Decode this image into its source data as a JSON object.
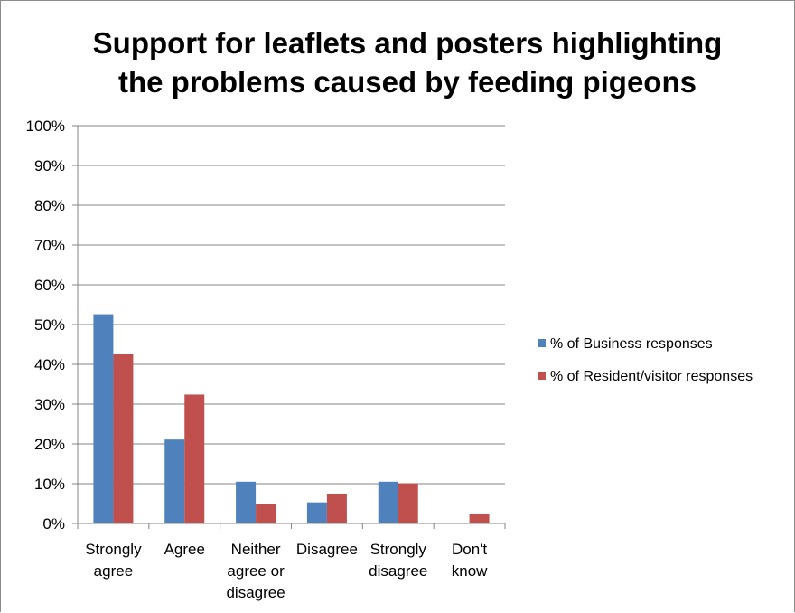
{
  "chart_data": {
    "type": "bar",
    "title_lines": [
      "Support for leaflets and posters highlighting",
      "the problems caused by feeding pigeons"
    ],
    "categories": [
      [
        "Strongly",
        "agree"
      ],
      [
        "Agree"
      ],
      [
        "Neither",
        "agree or",
        "disagree"
      ],
      [
        "Disagree"
      ],
      [
        "Strongly",
        "disagree"
      ],
      [
        "Don't",
        "know"
      ]
    ],
    "series": [
      {
        "name": "% of Business responses",
        "color": "#4f81bd",
        "values": [
          52.6,
          21.1,
          10.5,
          5.3,
          10.5,
          0
        ]
      },
      {
        "name": "% of Resident/visitor responses",
        "color": "#c0504d",
        "values": [
          42.6,
          32.4,
          5.0,
          7.5,
          10.1,
          2.5
        ]
      }
    ],
    "yticks": [
      "0%",
      "10%",
      "20%",
      "30%",
      "40%",
      "50%",
      "60%",
      "70%",
      "80%",
      "90%",
      "100%"
    ],
    "ylim": [
      0,
      100
    ],
    "grid": true,
    "legend_position": "right"
  }
}
